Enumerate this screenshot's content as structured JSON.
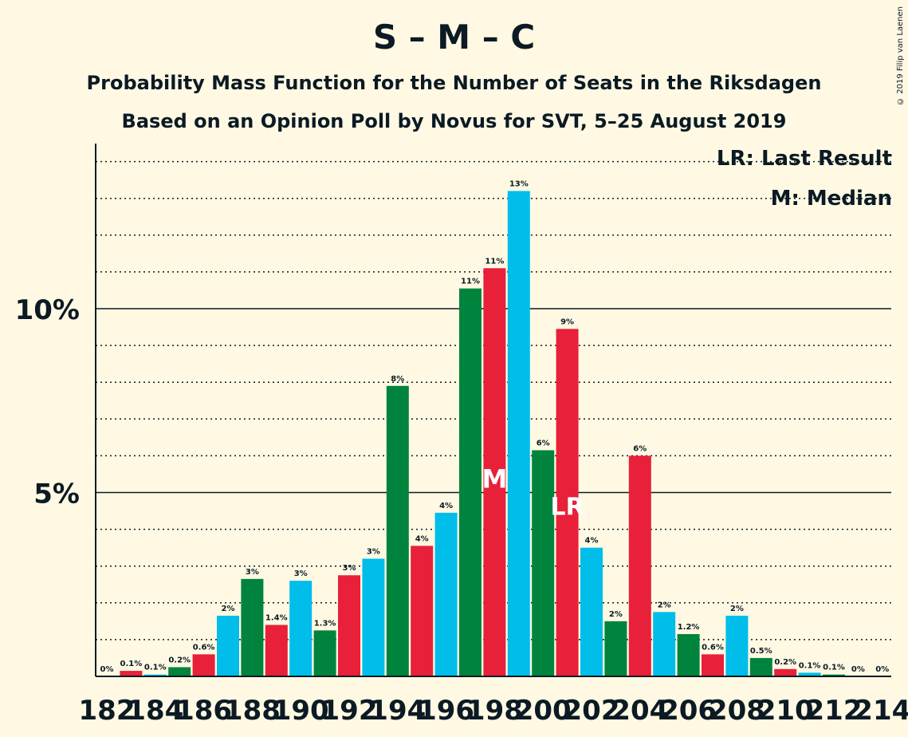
{
  "title": "S – M – C",
  "subtitle1": "Probability Mass Function for the Number of Seats in the Riksdagen",
  "subtitle2": "Based on an Opinion Poll by Novus for SVT, 5–25 August 2019",
  "copyright": "© 2019 Filip van Laenen",
  "legend": {
    "lr": "LR: Last Result",
    "m": "M: Median"
  },
  "colors": {
    "S": "#e8203a",
    "M": "#00bdea",
    "C": "#00843d",
    "background": "#fff9e3",
    "text": "#0b1a24"
  },
  "chart_data": {
    "type": "bar",
    "ylim": [
      0,
      14
    ],
    "y_tick_labels": [
      {
        "value": 5,
        "label": "5%"
      },
      {
        "value": 10,
        "label": "10%"
      }
    ],
    "x": [
      182,
      183,
      184,
      185,
      186,
      187,
      188,
      189,
      190,
      191,
      192,
      193,
      194,
      195,
      196,
      197,
      198,
      199,
      200,
      201,
      202,
      203,
      204,
      205,
      206,
      207,
      208,
      209,
      210,
      211,
      212,
      213,
      214
    ],
    "values": [
      0,
      0.15,
      0.05,
      0.25,
      0.6,
      1.65,
      2.65,
      1.4,
      2.6,
      1.25,
      2.75,
      3.2,
      7.9,
      3.55,
      4.45,
      10.55,
      11.1,
      13.2,
      6.15,
      9.45,
      3.5,
      1.5,
      6.0,
      1.75,
      1.15,
      0.6,
      1.65,
      0.5,
      0.2,
      0.1,
      0.05,
      0,
      0
    ],
    "value_labels": [
      "0%",
      "0.1%",
      "0.1%",
      "0.2%",
      "0.6%",
      "2%",
      "3%",
      "1.4%",
      "3%",
      "1.3%",
      "3%",
      "3%",
      "8%",
      "4%",
      "4%",
      "11%",
      "11%",
      "13%",
      "6%",
      "9%",
      "4%",
      "2%",
      "6%",
      "2%",
      "1.2%",
      "0.6%",
      "2%",
      "0.5%",
      "0.2%",
      "0.1%",
      "0.1%",
      "0%",
      "0%"
    ],
    "x_tick_labels": [
      "182",
      "184",
      "186",
      "188",
      "190",
      "192",
      "194",
      "196",
      "198",
      "200",
      "202",
      "204",
      "206",
      "208",
      "210",
      "212",
      "214"
    ],
    "median_label": "M",
    "median_seat": 198,
    "last_result_label": "LR",
    "last_result_seat": 201
  }
}
